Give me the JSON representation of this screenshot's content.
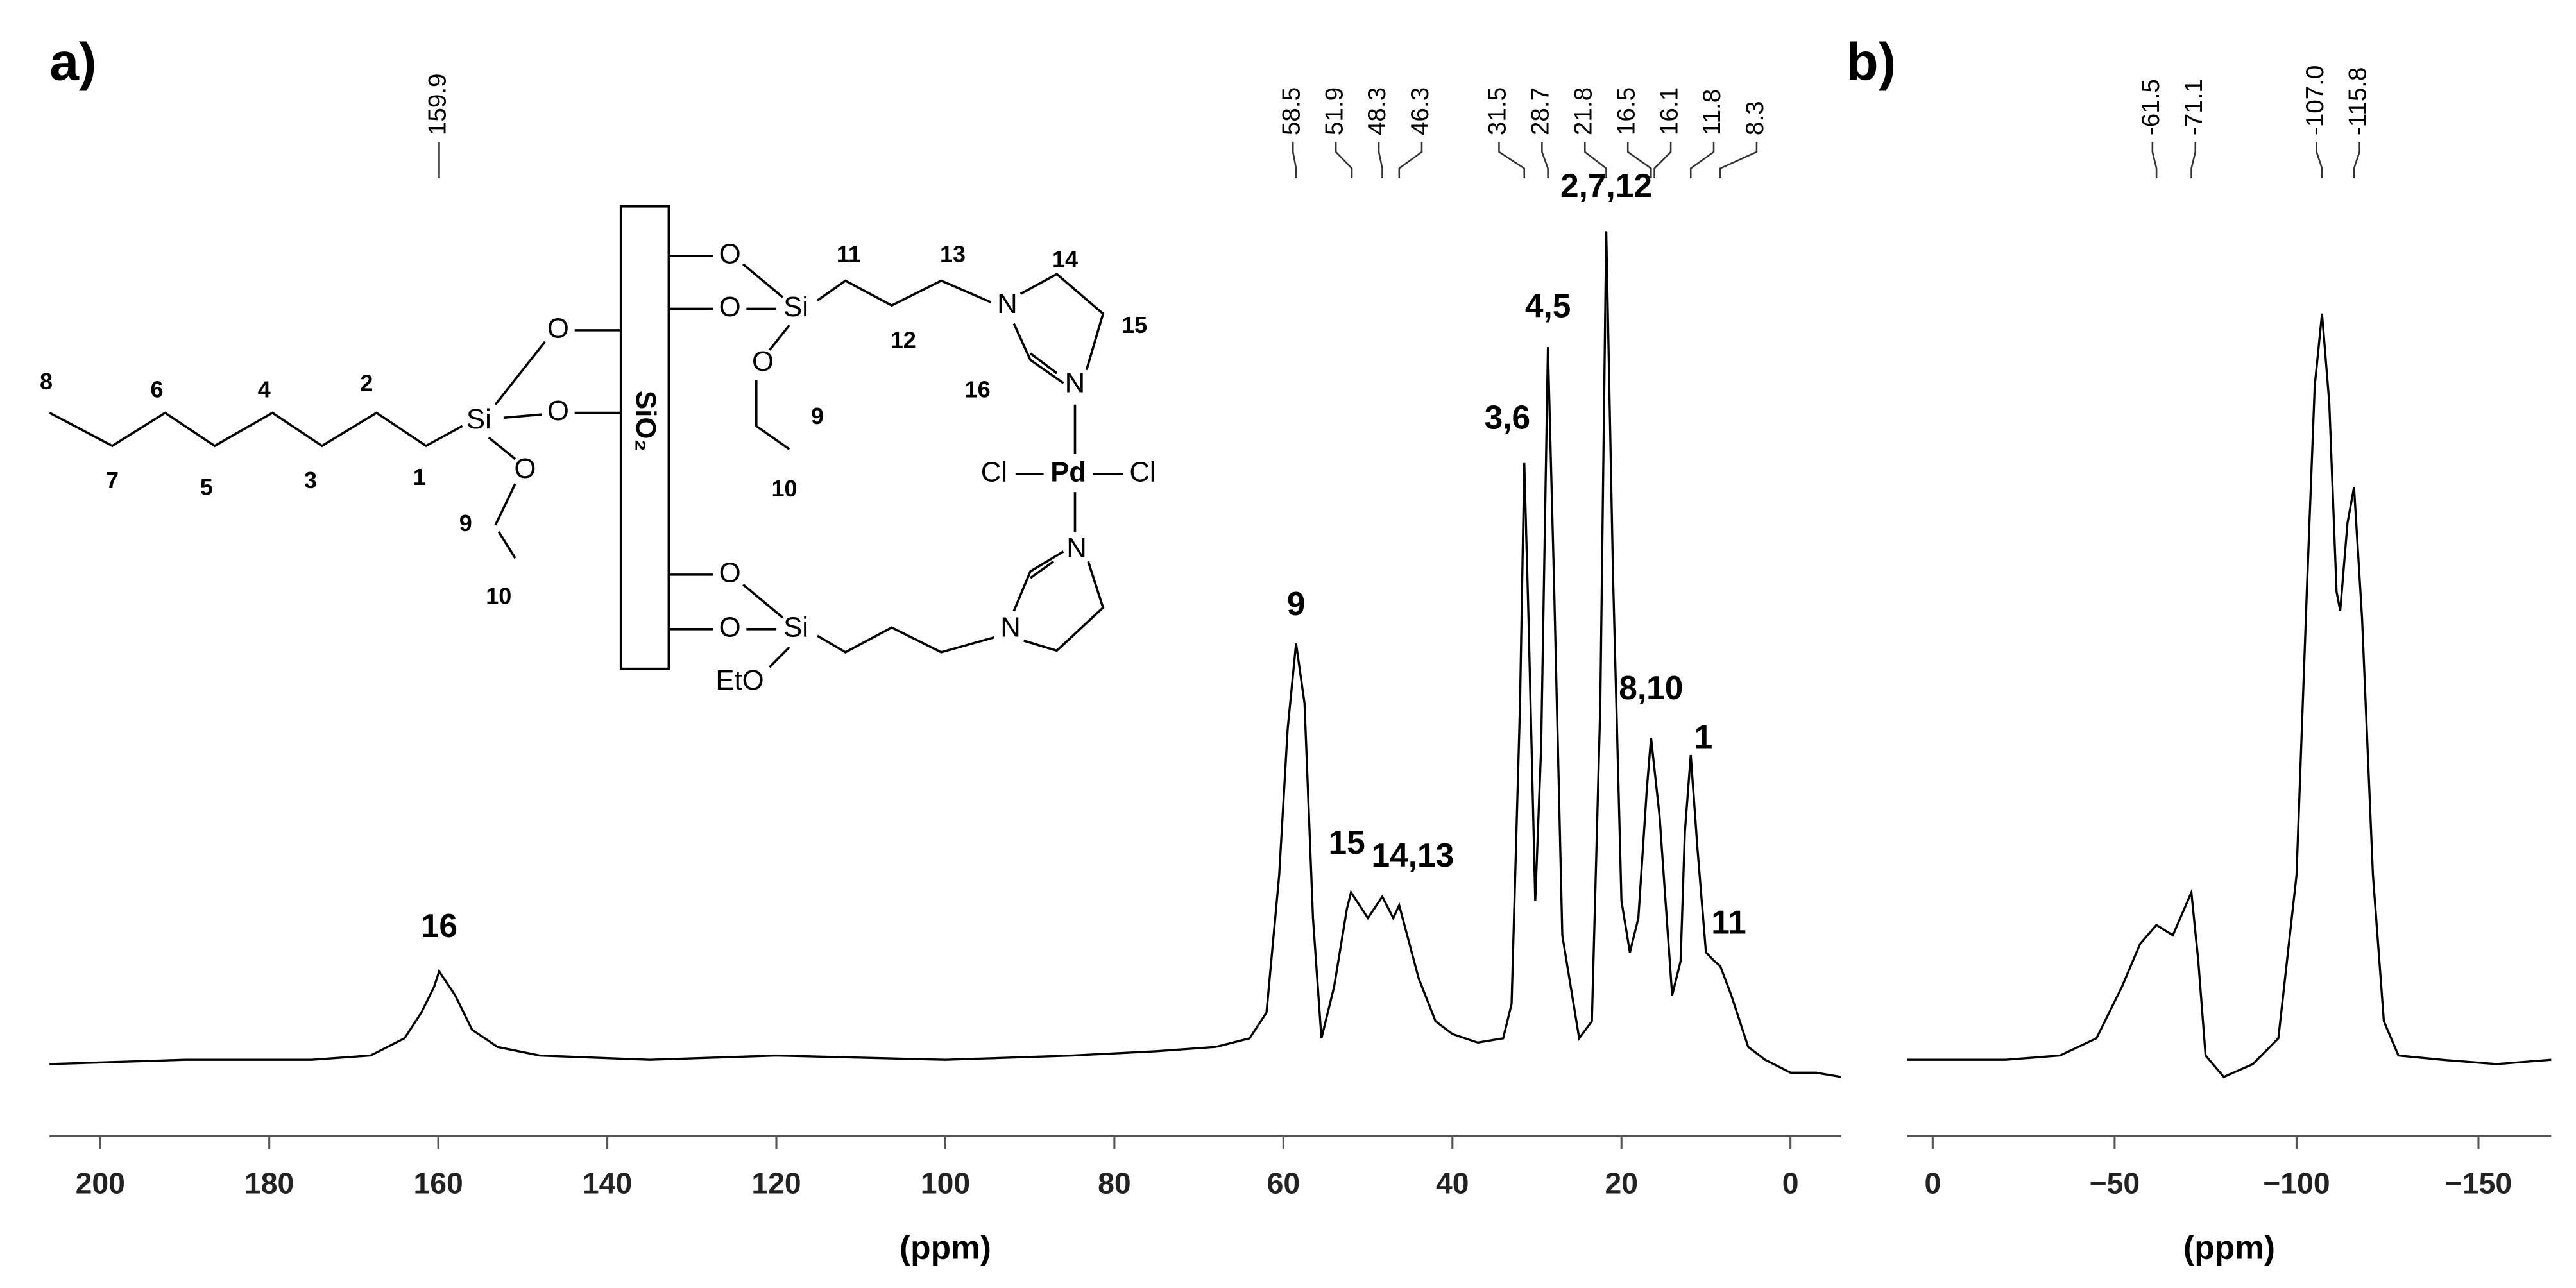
{
  "chart_data": [
    {
      "type": "line",
      "panel_label": "a)",
      "x_label": "(ppm)",
      "color": "#000000",
      "xlim": [
        206,
        -6
      ],
      "xticks": [
        200,
        180,
        160,
        140,
        120,
        100,
        80,
        60,
        40,
        20,
        0
      ],
      "ylim": [
        0,
        100
      ],
      "x": [
        206,
        190,
        175,
        168,
        164,
        162,
        160.5,
        159.9,
        158,
        156,
        153,
        148,
        135,
        120,
        100,
        85,
        75,
        68,
        64,
        62,
        60.5,
        59.5,
        58.5,
        57.5,
        56.5,
        55.5,
        54,
        52.5,
        52,
        50,
        48.3,
        47,
        46.3,
        44,
        42,
        40,
        37,
        34,
        33,
        32,
        31.5,
        31,
        30.2,
        29.5,
        28.7,
        28,
        27,
        25,
        23.5,
        22.5,
        21.8,
        21,
        20,
        19,
        18,
        17,
        16.5,
        15.5,
        14,
        13,
        12.5,
        11.8,
        11,
        10,
        9,
        8.3,
        7,
        5,
        3,
        0,
        -3,
        -6
      ],
      "values": [
        3,
        3.5,
        3.5,
        4,
        6,
        9,
        12,
        13.8,
        11,
        7,
        5,
        4,
        3.5,
        4,
        3.5,
        4,
        4.5,
        5,
        6,
        9,
        25,
        42,
        52,
        45,
        20,
        6,
        12,
        21,
        23,
        20,
        22.5,
        20,
        21.5,
        13,
        8,
        6.5,
        5.5,
        6,
        10,
        45,
        73,
        55,
        22,
        40,
        86.5,
        60,
        18,
        6,
        8,
        45,
        100,
        60,
        22,
        16,
        20,
        35,
        41,
        32,
        11,
        15,
        30,
        39,
        28,
        16,
        15,
        14.4,
        11,
        5,
        3.5,
        2,
        2,
        1.5
      ],
      "peak_labels": [
        159.9,
        58.5,
        51.9,
        48.3,
        46.3,
        31.5,
        28.7,
        21.8,
        16.5,
        16.1,
        11.8,
        8.3
      ],
      "annotations": [
        {
          "text": "16",
          "x": 159.9,
          "y": 18.8
        },
        {
          "text": "9",
          "x": 58.5,
          "y": 56.3
        },
        {
          "text": "15",
          "x": 52.5,
          "y": 28.5
        },
        {
          "text": "14,13",
          "x": 44.7,
          "y": 27
        },
        {
          "text": "3,6",
          "x": 33.5,
          "y": 78
        },
        {
          "text": "4,5",
          "x": 28.7,
          "y": 91
        },
        {
          "text": "2,7,12",
          "x": 21.8,
          "y": 105
        },
        {
          "text": "8,10",
          "x": 16.5,
          "y": 46.5
        },
        {
          "text": "1",
          "x": 10.3,
          "y": 40.8
        },
        {
          "text": "11",
          "x": 7.3,
          "y": 19.2
        }
      ]
    },
    {
      "type": "line",
      "panel_label": "b)",
      "x_label": "(ppm)",
      "color": "#000000",
      "xlim": [
        7,
        -170
      ],
      "xticks": [
        0,
        {
          "value": -50,
          "label": "−50"
        },
        {
          "value": -100,
          "label": "−100"
        },
        {
          "value": -150,
          "label": "−150"
        }
      ],
      "ylim": [
        0,
        100
      ],
      "x": [
        7,
        0,
        -20,
        -35,
        -45,
        -52,
        -57,
        -61.5,
        -66,
        -71.1,
        -73,
        -75,
        -80,
        -88,
        -95,
        -100,
        -103,
        -105,
        -107,
        -109,
        -111,
        -112,
        -114,
        -115.8,
        -118,
        -121,
        -124,
        -128,
        -140,
        -155,
        -170
      ],
      "values": [
        3.5,
        3.5,
        3.5,
        4,
        6,
        12,
        17,
        19.2,
        18,
        23,
        15,
        4,
        1.5,
        3,
        6,
        25,
        60,
        82,
        90.4,
        80,
        58,
        55.8,
        66,
        70.2,
        55,
        25,
        8,
        4,
        3.5,
        3,
        3.5
      ],
      "peak_labels": [
        -61.5,
        -71.1,
        {
          "value": -107.0,
          "label": "-107.0"
        },
        -115.8
      ]
    }
  ],
  "structure": {
    "labels": [
      "8",
      "6",
      "4",
      "2",
      "7",
      "5",
      "3",
      "1",
      "Si",
      "O",
      "O",
      "O",
      "9",
      "10",
      "SiO₂",
      "O",
      "O",
      "Si",
      "O",
      "11",
      "13",
      "12",
      "N",
      "14",
      "15",
      "16",
      "N",
      "9",
      "10",
      "Cl",
      "Pd",
      "Cl",
      "N",
      "N",
      "O",
      "O",
      "Si",
      "EtO"
    ]
  }
}
